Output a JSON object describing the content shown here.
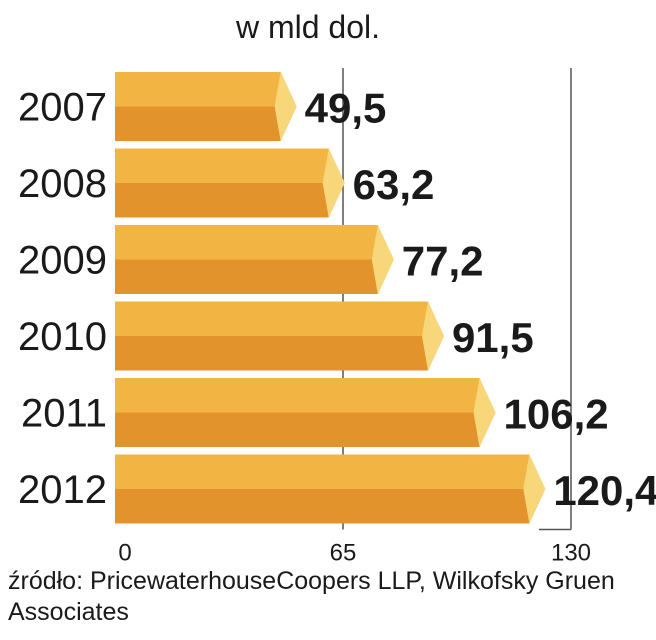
{
  "chart_data": {
    "type": "bar",
    "orientation": "horizontal",
    "unit_label": "w mld  dol.",
    "categories": [
      "2007",
      "2008",
      "2009",
      "2010",
      "2011",
      "2012"
    ],
    "values": [
      49.5,
      63.2,
      77.2,
      91.5,
      106.2,
      120.4
    ],
    "value_labels": [
      "49,5",
      "63,2",
      "77,2",
      "91,5",
      "106,2",
      "120,4"
    ],
    "xlim": [
      0,
      130
    ],
    "x_ticks": [
      0,
      65,
      130
    ],
    "x_tick_labels": [
      "0",
      "65",
      "130"
    ],
    "grid": true,
    "colors": {
      "bar_top": "#f2b544",
      "bar_bottom": "#e3932b",
      "bar_tip": "#f8d77a",
      "text": "#1a1a1a",
      "grid": "#555555"
    }
  },
  "source": "źródło: PricewaterhouseCoopers LLP, Wilkofsky Gruen Associates"
}
